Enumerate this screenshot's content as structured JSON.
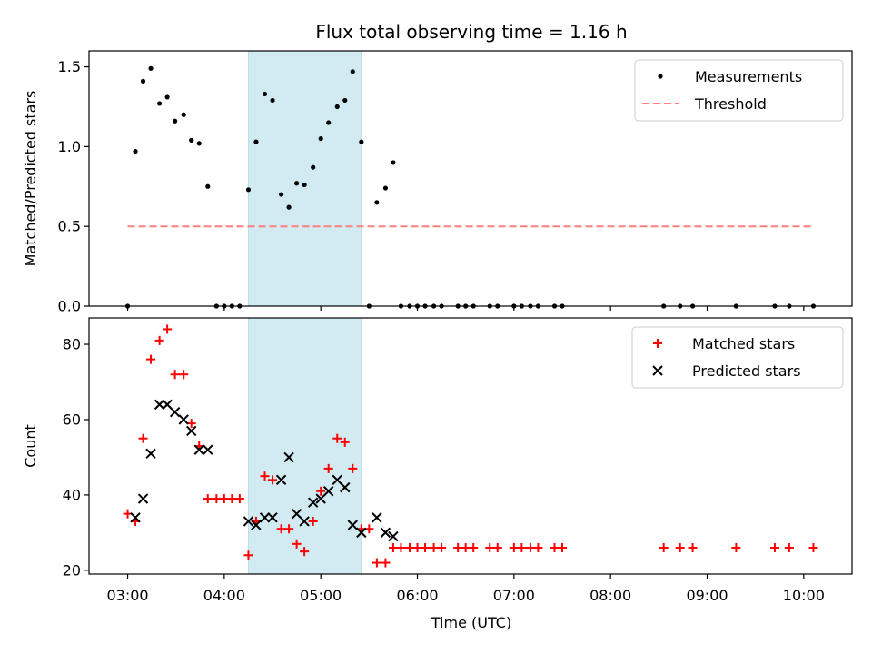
{
  "chart_data": {
    "type": "scatter",
    "title": "Flux total observing time = 1.16 h",
    "xlabel": "Time (UTC)",
    "x_unit": "hours UTC",
    "xlim": [
      2.6,
      10.5
    ],
    "xticks": [
      {
        "value": 3,
        "label": "03:00"
      },
      {
        "value": 4,
        "label": "04:00"
      },
      {
        "value": 5,
        "label": "05:00"
      },
      {
        "value": 6,
        "label": "06:00"
      },
      {
        "value": 7,
        "label": "07:00"
      },
      {
        "value": 8,
        "label": "08:00"
      },
      {
        "value": 9,
        "label": "09:00"
      },
      {
        "value": 10,
        "label": "10:00"
      }
    ],
    "highlight_span": {
      "x": [
        4.25,
        5.42
      ],
      "color": "#add8e6"
    },
    "panels": [
      {
        "id": "ratio",
        "ylabel": "Matched/Predicted stars",
        "ylim": [
          0,
          1.6
        ],
        "yticks": [
          {
            "value": 0,
            "label": "0.0"
          },
          {
            "value": 0.5,
            "label": "0.5"
          },
          {
            "value": 1.0,
            "label": "1.0"
          },
          {
            "value": 1.5,
            "label": "1.5"
          }
        ],
        "legend_position": "top-right",
        "series": [
          {
            "name": "Measurements",
            "kind": "scatter",
            "marker": "dot",
            "color": "#000000",
            "points": [
              [
                3.0,
                0
              ],
              [
                3.08,
                0.97
              ],
              [
                3.16,
                1.41
              ],
              [
                3.24,
                1.49
              ],
              [
                3.33,
                1.27
              ],
              [
                3.41,
                1.31
              ],
              [
                3.49,
                1.16
              ],
              [
                3.58,
                1.2
              ],
              [
                3.66,
                1.04
              ],
              [
                3.74,
                1.02
              ],
              [
                3.83,
                0.75
              ],
              [
                3.92,
                0
              ],
              [
                4.0,
                0
              ],
              [
                4.08,
                0
              ],
              [
                4.16,
                0
              ],
              [
                4.25,
                0.73
              ],
              [
                4.33,
                1.03
              ],
              [
                4.42,
                1.33
              ],
              [
                4.5,
                1.29
              ],
              [
                4.59,
                0.7
              ],
              [
                4.67,
                0.62
              ],
              [
                4.75,
                0.77
              ],
              [
                4.83,
                0.76
              ],
              [
                4.92,
                0.87
              ],
              [
                5.0,
                1.05
              ],
              [
                5.08,
                1.15
              ],
              [
                5.17,
                1.25
              ],
              [
                5.25,
                1.29
              ],
              [
                5.33,
                1.47
              ],
              [
                5.42,
                1.03
              ],
              [
                5.5,
                0
              ],
              [
                5.58,
                0.65
              ],
              [
                5.67,
                0.74
              ],
              [
                5.75,
                0.9
              ],
              [
                5.83,
                0
              ],
              [
                5.92,
                0
              ],
              [
                6.0,
                0
              ],
              [
                6.08,
                0
              ],
              [
                6.17,
                0
              ],
              [
                6.25,
                0
              ],
              [
                6.42,
                0
              ],
              [
                6.5,
                0
              ],
              [
                6.58,
                0
              ],
              [
                6.75,
                0
              ],
              [
                6.83,
                0
              ],
              [
                7.0,
                0
              ],
              [
                7.08,
                0
              ],
              [
                7.17,
                0
              ],
              [
                7.25,
                0
              ],
              [
                7.42,
                0
              ],
              [
                7.5,
                0
              ],
              [
                8.55,
                0
              ],
              [
                8.72,
                0
              ],
              [
                8.85,
                0
              ],
              [
                9.3,
                0
              ],
              [
                9.7,
                0
              ],
              [
                9.85,
                0
              ],
              [
                10.1,
                0
              ]
            ]
          },
          {
            "name": "Threshold",
            "kind": "line",
            "style": "dashed",
            "color": "#ff7f7f",
            "points": [
              [
                3.0,
                0.5
              ],
              [
                10.1,
                0.5
              ]
            ]
          }
        ]
      },
      {
        "id": "count",
        "ylabel": "Count",
        "ylim": [
          19,
          87
        ],
        "yticks": [
          {
            "value": 20,
            "label": "20"
          },
          {
            "value": 40,
            "label": "40"
          },
          {
            "value": 60,
            "label": "60"
          },
          {
            "value": 80,
            "label": "80"
          }
        ],
        "legend_position": "top-right",
        "series": [
          {
            "name": "Matched stars",
            "kind": "scatter",
            "marker": "plus",
            "color": "#ff0000",
            "points": [
              [
                3.0,
                35
              ],
              [
                3.08,
                33
              ],
              [
                3.16,
                55
              ],
              [
                3.24,
                76
              ],
              [
                3.33,
                81
              ],
              [
                3.41,
                84
              ],
              [
                3.49,
                72
              ],
              [
                3.58,
                72
              ],
              [
                3.66,
                59
              ],
              [
                3.74,
                53
              ],
              [
                3.83,
                39
              ],
              [
                3.92,
                39
              ],
              [
                4.0,
                39
              ],
              [
                4.08,
                39
              ],
              [
                4.16,
                39
              ],
              [
                4.25,
                24
              ],
              [
                4.33,
                33
              ],
              [
                4.42,
                45
              ],
              [
                4.5,
                44
              ],
              [
                4.59,
                31
              ],
              [
                4.67,
                31
              ],
              [
                4.75,
                27
              ],
              [
                4.83,
                25
              ],
              [
                4.92,
                33
              ],
              [
                5.0,
                41
              ],
              [
                5.08,
                47
              ],
              [
                5.17,
                55
              ],
              [
                5.25,
                54
              ],
              [
                5.33,
                47
              ],
              [
                5.42,
                31
              ],
              [
                5.5,
                31
              ],
              [
                5.58,
                22
              ],
              [
                5.67,
                22
              ],
              [
                5.75,
                26
              ],
              [
                5.83,
                26
              ],
              [
                5.92,
                26
              ],
              [
                6.0,
                26
              ],
              [
                6.08,
                26
              ],
              [
                6.17,
                26
              ],
              [
                6.25,
                26
              ],
              [
                6.42,
                26
              ],
              [
                6.5,
                26
              ],
              [
                6.58,
                26
              ],
              [
                6.75,
                26
              ],
              [
                6.83,
                26
              ],
              [
                7.0,
                26
              ],
              [
                7.08,
                26
              ],
              [
                7.17,
                26
              ],
              [
                7.25,
                26
              ],
              [
                7.42,
                26
              ],
              [
                7.5,
                26
              ],
              [
                8.55,
                26
              ],
              [
                8.72,
                26
              ],
              [
                8.85,
                26
              ],
              [
                9.3,
                26
              ],
              [
                9.7,
                26
              ],
              [
                9.85,
                26
              ],
              [
                10.1,
                26
              ]
            ]
          },
          {
            "name": "Predicted stars",
            "kind": "scatter",
            "marker": "x",
            "color": "#000000",
            "points": [
              [
                3.08,
                34
              ],
              [
                3.16,
                39
              ],
              [
                3.24,
                51
              ],
              [
                3.33,
                64
              ],
              [
                3.41,
                64
              ],
              [
                3.49,
                62
              ],
              [
                3.58,
                60
              ],
              [
                3.66,
                57
              ],
              [
                3.74,
                52
              ],
              [
                3.83,
                52
              ],
              [
                4.25,
                33
              ],
              [
                4.33,
                32
              ],
              [
                4.42,
                34
              ],
              [
                4.5,
                34
              ],
              [
                4.59,
                44
              ],
              [
                4.67,
                50
              ],
              [
                4.75,
                35
              ],
              [
                4.83,
                33
              ],
              [
                4.92,
                38
              ],
              [
                5.0,
                39
              ],
              [
                5.08,
                41
              ],
              [
                5.17,
                44
              ],
              [
                5.25,
                42
              ],
              [
                5.33,
                32
              ],
              [
                5.42,
                30
              ],
              [
                5.58,
                34
              ],
              [
                5.67,
                30
              ],
              [
                5.75,
                29
              ]
            ]
          }
        ]
      }
    ]
  }
}
